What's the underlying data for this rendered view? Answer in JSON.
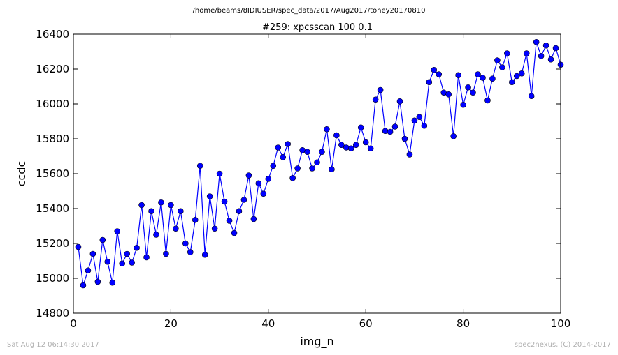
{
  "header": {
    "suptitle": "/home/beams/8IDIUSER/spec_data/2017/Aug2017/toney20170810"
  },
  "footer": {
    "timestamp": "Sat Aug 12 06:14:30 2017",
    "credit": "spec2nexus, (C) 2014-2017"
  },
  "colors": {
    "series": "#0000ff",
    "line": "#0000ff",
    "axes": "#000000",
    "footer_text": "#b0b0b0"
  },
  "chart_data": {
    "type": "line",
    "title": "#259: xpcsscan 100 0.1",
    "xlabel": "img_n",
    "ylabel": "ccdc",
    "xlim": [
      0,
      100
    ],
    "ylim": [
      14800,
      16400
    ],
    "xticks": [
      "0",
      "20",
      "40",
      "60",
      "80",
      "100"
    ],
    "yticks": [
      "14800",
      "15000",
      "15200",
      "15400",
      "15600",
      "15800",
      "16000",
      "16200",
      "16400"
    ],
    "grid": false,
    "marker": "circle",
    "series": [
      {
        "x": [
          1,
          2,
          3,
          4,
          5,
          6,
          7,
          8,
          9,
          10,
          11,
          12,
          13,
          14,
          15,
          16,
          17,
          18,
          19,
          20,
          21,
          22,
          23,
          24,
          25,
          26,
          27,
          28,
          29,
          30,
          31,
          32,
          33,
          34,
          35,
          36,
          37,
          38,
          39,
          40,
          41,
          42,
          43,
          44,
          45,
          46,
          47,
          48,
          49,
          50,
          51,
          52,
          53,
          54,
          55,
          56,
          57,
          58,
          59,
          60,
          61,
          62,
          63,
          64,
          65,
          66,
          67,
          68,
          69,
          70,
          71,
          72,
          73,
          74,
          75,
          76,
          77,
          78,
          79,
          80,
          81,
          82,
          83,
          84,
          85,
          86,
          87,
          88,
          89,
          90,
          91,
          92,
          93,
          94,
          95,
          96,
          97,
          98,
          99,
          100
        ],
        "y": [
          15180,
          14960,
          15045,
          15140,
          14980,
          15220,
          15095,
          14975,
          15270,
          15085,
          15140,
          15090,
          15175,
          15420,
          15120,
          15385,
          15250,
          15435,
          15140,
          15420,
          15285,
          15385,
          15200,
          15150,
          15335,
          15645,
          15135,
          15470,
          15285,
          15600,
          15440,
          15330,
          15260,
          15385,
          15450,
          15590,
          15340,
          15545,
          15485,
          15570,
          15645,
          15750,
          15695,
          15770,
          15575,
          15630,
          15735,
          15725,
          15630,
          15665,
          15725,
          15855,
          15625,
          15820,
          15765,
          15750,
          15745,
          15765,
          15865,
          15780,
          15745,
          16025,
          16080,
          15845,
          15840,
          15870,
          16015,
          15800,
          15710,
          15905,
          15925,
          15875,
          16125,
          16195,
          16170,
          16065,
          16055,
          15815,
          16165,
          15995,
          16095,
          16065,
          16170,
          16150,
          16020,
          16145,
          16250,
          16210,
          16290,
          16125,
          16160,
          16175,
          16290,
          16045,
          16355,
          16275,
          16335,
          16255,
          16320,
          16225
        ]
      }
    ]
  }
}
